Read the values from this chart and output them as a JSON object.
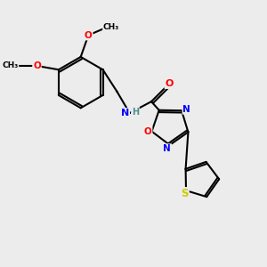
{
  "bg_color": "#ececec",
  "bond_color": "#000000",
  "atom_colors": {
    "N": "#0000ff",
    "O": "#ff0000",
    "S": "#cccc00",
    "C": "#000000",
    "H": "#4a9090"
  },
  "figsize": [
    3.0,
    3.0
  ],
  "dpi": 100
}
